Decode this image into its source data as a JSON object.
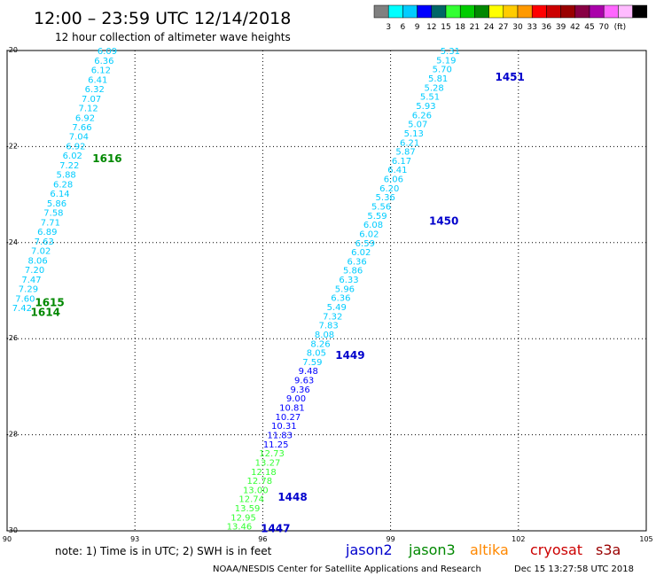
{
  "header": {
    "title": "12:00 – 23:59 UTC 12/14/2018",
    "subtitle": "12 hour collection of altimeter wave heights"
  },
  "colorbar": {
    "colors": [
      "#808080",
      "#00ffff",
      "#00ccff",
      "#0000ff",
      "#006666",
      "#33ff33",
      "#00cc00",
      "#008800",
      "#ffff00",
      "#ffcc00",
      "#ff9900",
      "#ff0000",
      "#cc0000",
      "#990000",
      "#880044",
      "#aa00aa",
      "#ff66ff",
      "#ffbbff",
      "#000000"
    ],
    "labels": [
      "3",
      "6",
      "9",
      "12",
      "15",
      "18",
      "21",
      "24",
      "27",
      "30",
      "33",
      "36",
      "39",
      "42",
      "45",
      "70"
    ],
    "unit": "(ft)"
  },
  "chart_data": {
    "type": "scatter",
    "xlim": [
      90,
      105
    ],
    "ylim": [
      -30,
      -20
    ],
    "x_ticks": [
      90,
      93,
      96,
      99,
      102,
      105
    ],
    "y_ticks": [
      -20,
      -22,
      -24,
      -26,
      -28,
      -30
    ],
    "x_tick_labels": [
      "90",
      "93",
      "96",
      "99",
      "102",
      "105"
    ],
    "y_tick_labels": [
      "-20",
      "-22",
      "-24",
      "-26",
      "-28",
      "-30"
    ],
    "grid": true,
    "series": [
      {
        "name": "jason2",
        "color": "#0000cc"
      },
      {
        "name": "jason3",
        "color": "#008800"
      },
      {
        "name": "altika",
        "color": "#ff8800"
      },
      {
        "name": "cryosat",
        "color": "#cc0000"
      },
      {
        "name": "s3a",
        "color": "#990000"
      }
    ],
    "tracks": [
      {
        "satellite": "jason3",
        "start": [
          92.35,
          -20.02
        ],
        "end": [
          90.35,
          -25.37
        ],
        "values": [
          "6.09",
          "6.36",
          "6.12",
          "6.41",
          "6.32",
          "7.07",
          "7.12",
          "6.92",
          "7.66",
          "7.04",
          "6.92",
          "6.02",
          "7.22",
          "5.88",
          "6.28",
          "6.14",
          "5.86",
          "7.58",
          "7.71",
          "6.89",
          "7.63",
          "7.02",
          "8.06",
          "7.20",
          "7.47",
          "7.29",
          "7.60",
          "7.42"
        ]
      },
      {
        "satellite": "jason2",
        "start": [
          100.4,
          -20.02
        ],
        "end": [
          95.45,
          -29.92
        ],
        "values": [
          "5.31",
          "5.19",
          "5.70",
          "5.81",
          "5.28",
          "5.51",
          "5.93",
          "6.26",
          "5.07",
          "5.13",
          "6.21",
          "5.87",
          "6.17",
          "6.41",
          "6.06",
          "6.20",
          "5.36",
          "5.56",
          "5.59",
          "6.08",
          "6.02",
          "6.59",
          "6.02",
          "6.36",
          "5.86",
          "6.33",
          "5.96",
          "6.36",
          "5.49",
          "7.32",
          "7.83",
          "8.08",
          "8.26",
          "8.05",
          "7.59",
          "9.48",
          "9.63",
          "9.36",
          "9.00",
          "10.81",
          "10.27",
          "10.31",
          "11.83",
          "11.25",
          "12.73",
          "13.27",
          "12.18",
          "12.78",
          "13.00",
          "12.74",
          "13.59",
          "12.95",
          "13.46"
        ]
      }
    ],
    "pass_labels": [
      {
        "text": "1616",
        "x": 92.35,
        "y": -22.25,
        "satellite": "jason3"
      },
      {
        "text": "1615",
        "x": 91.0,
        "y": -25.25,
        "satellite": "jason3"
      },
      {
        "text": "1614",
        "x": 90.9,
        "y": -25.45,
        "satellite": "jason3"
      },
      {
        "text": "1451",
        "x": 101.8,
        "y": -20.55,
        "satellite": "jason2"
      },
      {
        "text": "1450",
        "x": 100.25,
        "y": -23.55,
        "satellite": "jason2"
      },
      {
        "text": "1449",
        "x": 98.05,
        "y": -26.35,
        "satellite": "jason2"
      },
      {
        "text": "1448",
        "x": 96.7,
        "y": -29.3,
        "satellite": "jason2"
      },
      {
        "text": "1447",
        "x": 96.3,
        "y": -29.95,
        "satellite": "jason2"
      }
    ]
  },
  "footer": {
    "note": "note:  1) Time is in UTC;  2) SWH is in feet",
    "credit": "NOAA/NESDIS Center for Satellite Applications and Research",
    "timestamp": "Dec 15 13:27:58 UTC 2018"
  }
}
